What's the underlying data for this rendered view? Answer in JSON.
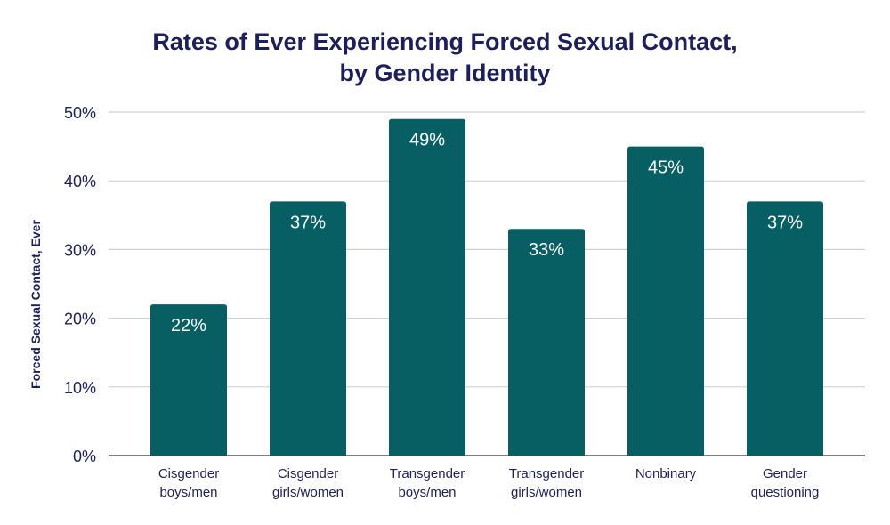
{
  "chart_data": {
    "type": "bar",
    "title": "Rates of Ever Experiencing Forced Sexual Contact, by Gender Identity",
    "title_lines": [
      "Rates of Ever Experiencing Forced Sexual Contact,",
      "by Gender Identity"
    ],
    "xlabel": "",
    "ylabel": "Forced Sexual Contact, Ever",
    "categories": [
      [
        "Cisgender",
        "boys/men"
      ],
      [
        "Cisgender",
        "girls/women"
      ],
      [
        "Transgender",
        "boys/men"
      ],
      [
        "Transgender",
        "girls/women"
      ],
      [
        "Nonbinary"
      ],
      [
        "Gender",
        "questioning"
      ]
    ],
    "values": [
      22,
      37,
      49,
      33,
      45,
      37
    ],
    "data_labels": [
      "22%",
      "37%",
      "49%",
      "33%",
      "45%",
      "37%"
    ],
    "ylim": [
      0,
      50
    ],
    "yticks": [
      0,
      10,
      20,
      30,
      40,
      50
    ],
    "ytick_labels": [
      "0%",
      "10%",
      "20%",
      "30%",
      "40%",
      "50%"
    ],
    "grid": true,
    "legend": "none",
    "colors": {
      "bar": "#075f63",
      "title": "#1c1f5c",
      "text": "#1c1f5c",
      "grid": "#d0d0d0",
      "axis": "#555555"
    }
  }
}
